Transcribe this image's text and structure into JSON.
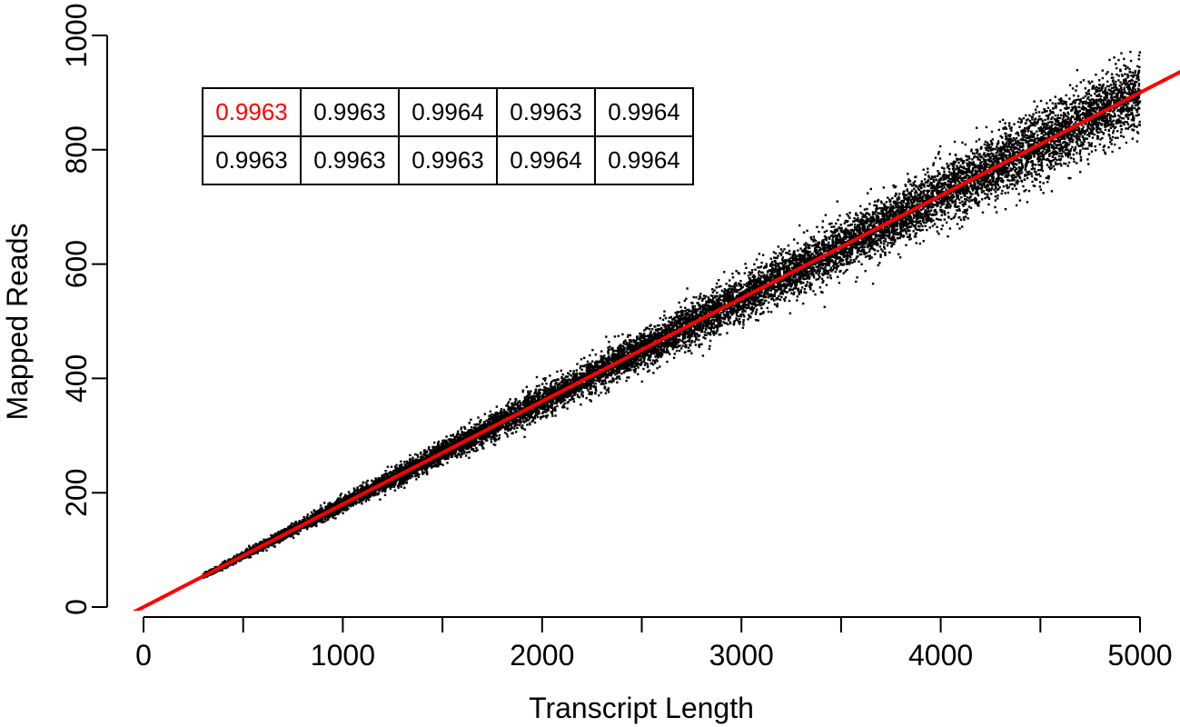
{
  "chart_data": {
    "type": "scatter",
    "xlabel": "Transcript Length",
    "ylabel": "Mapped Reads",
    "xlim": [
      0,
      5000
    ],
    "ylim": [
      0,
      1000
    ],
    "xticks": [
      0,
      500,
      1000,
      1500,
      2000,
      2500,
      3000,
      3500,
      4000,
      4500,
      5000
    ],
    "xtick_labels": [
      "0",
      "1000",
      "2000",
      "3000",
      "4000",
      "5000"
    ],
    "xtick_label_values": [
      0,
      1000,
      2000,
      3000,
      4000,
      5000
    ],
    "yticks": [
      0,
      200,
      400,
      600,
      800,
      1000
    ],
    "ytick_labels": [
      "0",
      "200",
      "400",
      "600",
      "800",
      "1000"
    ],
    "grid": false,
    "series": [
      {
        "point_color": "#000000",
        "x_range": [
          300,
          5000
        ],
        "slope": 0.18,
        "intercept": 0,
        "spread_sd_fraction": 0.035,
        "approx_points": 15000
      }
    ],
    "fit_line": {
      "color": "#ff0000",
      "slope": 0.18,
      "intercept": 0
    },
    "table": {
      "position": "top-left",
      "rows": [
        [
          "0.9963",
          "0.9963",
          "0.9964",
          "0.9963",
          "0.9964"
        ],
        [
          "0.9963",
          "0.9963",
          "0.9963",
          "0.9964",
          "0.9964"
        ]
      ],
      "highlight": {
        "row": 0,
        "col": 0,
        "color": "#ff0000"
      }
    }
  }
}
